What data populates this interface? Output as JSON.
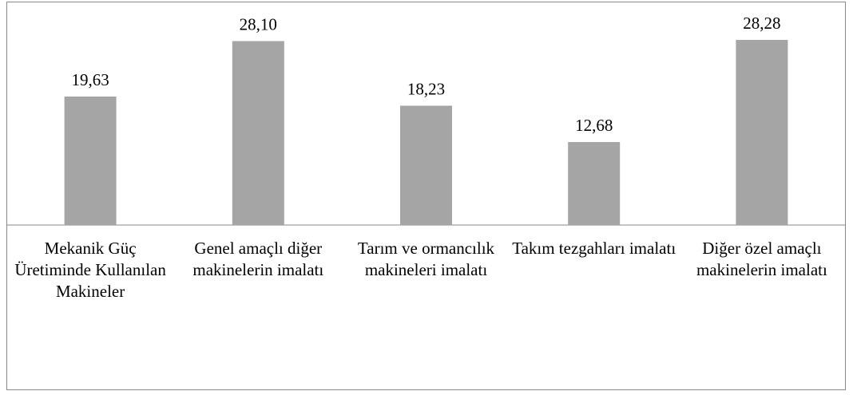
{
  "chart_data": {
    "type": "bar",
    "categories": [
      "Mekanik Güç Üretiminde Kullanılan Makineler",
      "Genel amaçlı diğer makinelerin imalatı",
      "Tarım ve ormancılık makineleri imalatı",
      "Takım tezgahları imalatı",
      "Diğer özel amaçlı makinelerin imalatı"
    ],
    "values": [
      19.63,
      28.1,
      18.23,
      12.68,
      28.28
    ],
    "value_labels": [
      "19,63",
      "28,10",
      "18,23",
      "12,68",
      "28,28"
    ],
    "color": "#a5a5a5"
  }
}
